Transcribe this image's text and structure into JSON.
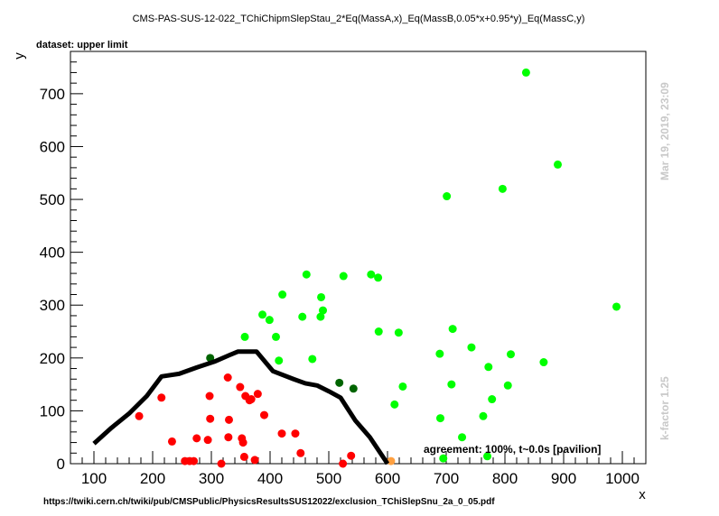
{
  "header": {
    "title": "CMS-PAS-SUS-12-022_TChiChipmSlepStau_2*Eq(MassA,x)_Eq(MassB,0.05*x+0.95*y)_Eq(MassC,y)",
    "dataset_label": "dataset: upper limit",
    "agreement": "agreement: 100%, t~0.0s [pavilion]",
    "source_url": "https://twiki.cern.ch/twiki/pub/CMSPublic/PhysicsResultsSUS12022/exclusion_TChiSlepSnu_2a_0_05.pdf",
    "timestamp": "Mar 19, 2019, 23:09",
    "kfactor": "k-factor 1.25"
  },
  "chart_data": {
    "type": "scatter",
    "xlabel": "x",
    "ylabel": "y",
    "xlim": [
      60,
      1040
    ],
    "ylim": [
      0,
      780
    ],
    "xticks": [
      100,
      200,
      300,
      400,
      500,
      600,
      700,
      800,
      900,
      1000
    ],
    "yticks": [
      0,
      100,
      200,
      300,
      400,
      500,
      600,
      700
    ],
    "series": [
      {
        "color": "#ff0000",
        "points": [
          [
            177,
            90
          ],
          [
            215,
            125
          ],
          [
            233,
            42
          ],
          [
            255,
            5
          ],
          [
            263,
            5
          ],
          [
            270,
            5
          ],
          [
            275,
            48
          ],
          [
            294,
            45
          ],
          [
            297,
            128
          ],
          [
            298,
            85
          ],
          [
            317,
            0
          ],
          [
            328,
            163
          ],
          [
            329,
            50
          ],
          [
            330,
            83
          ],
          [
            349,
            145
          ],
          [
            352,
            48
          ],
          [
            354,
            40
          ],
          [
            356,
            13
          ],
          [
            358,
            128
          ],
          [
            365,
            120
          ],
          [
            368,
            122
          ],
          [
            374,
            7
          ],
          [
            379,
            132
          ],
          [
            390,
            92
          ],
          [
            420,
            57
          ],
          [
            443,
            57
          ],
          [
            452,
            20
          ],
          [
            524,
            0
          ],
          [
            538,
            15
          ]
        ]
      },
      {
        "color": "#00ff00",
        "points": [
          [
            357,
            240
          ],
          [
            387,
            282
          ],
          [
            399,
            272
          ],
          [
            410,
            240
          ],
          [
            415,
            195
          ],
          [
            421,
            320
          ],
          [
            455,
            278
          ],
          [
            462,
            358
          ],
          [
            472,
            198
          ],
          [
            486,
            278
          ],
          [
            487,
            315
          ],
          [
            490,
            290
          ],
          [
            525,
            355
          ],
          [
            572,
            358
          ],
          [
            584,
            352
          ],
          [
            585,
            250
          ],
          [
            612,
            112
          ],
          [
            619,
            248
          ],
          [
            626,
            146
          ],
          [
            689,
            208
          ],
          [
            690,
            86
          ],
          [
            695,
            10
          ],
          [
            701,
            506
          ],
          [
            709,
            150
          ],
          [
            711,
            255
          ],
          [
            727,
            50
          ],
          [
            743,
            220
          ],
          [
            763,
            90
          ],
          [
            770,
            14
          ],
          [
            772,
            183
          ],
          [
            778,
            122
          ],
          [
            796,
            520
          ],
          [
            805,
            148
          ],
          [
            810,
            207
          ],
          [
            836,
            740
          ],
          [
            866,
            192
          ],
          [
            890,
            566
          ],
          [
            990,
            297
          ]
        ]
      },
      {
        "color": "#006400",
        "points": [
          [
            298,
            200
          ],
          [
            518,
            153
          ],
          [
            542,
            142
          ]
        ]
      },
      {
        "color": "#ffa040",
        "points": [
          [
            606,
            5
          ]
        ]
      }
    ],
    "exclusion_line": [
      [
        100,
        38
      ],
      [
        130,
        68
      ],
      [
        160,
        95
      ],
      [
        190,
        128
      ],
      [
        215,
        165
      ],
      [
        245,
        170
      ],
      [
        275,
        182
      ],
      [
        305,
        193
      ],
      [
        330,
        205
      ],
      [
        345,
        212
      ],
      [
        362,
        212
      ],
      [
        377,
        212
      ],
      [
        405,
        175
      ],
      [
        440,
        160
      ],
      [
        460,
        152
      ],
      [
        480,
        148
      ],
      [
        500,
        137
      ],
      [
        520,
        125
      ],
      [
        545,
        82
      ],
      [
        570,
        50
      ],
      [
        600,
        0
      ]
    ]
  }
}
